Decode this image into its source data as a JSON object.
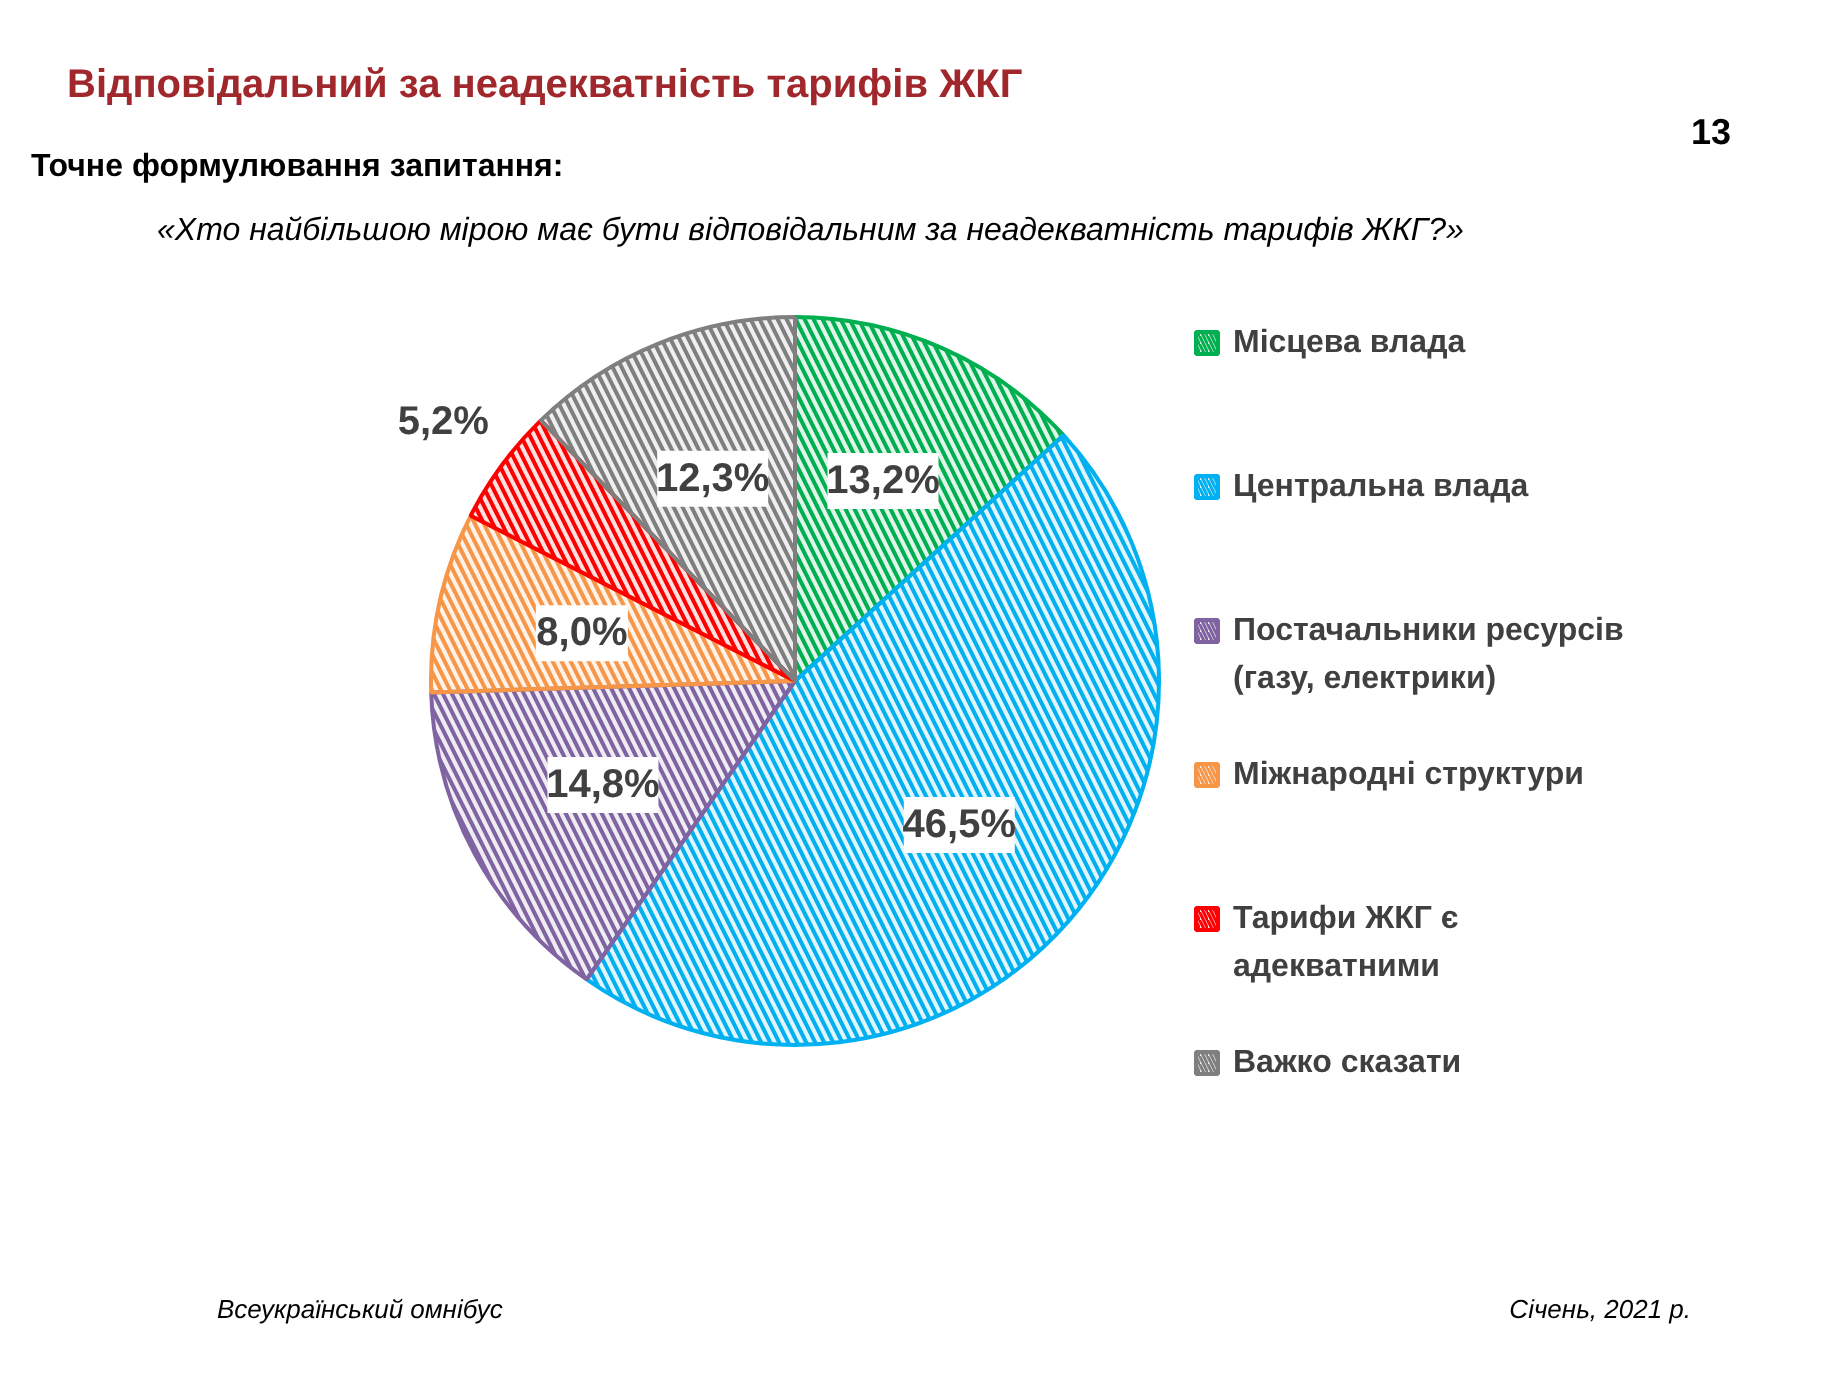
{
  "chart_data": {
    "type": "pie",
    "title": "Відповідальний за неадекватність тарифів ЖКГ",
    "subtitle": "Точне формулювання запитання:",
    "annotations": [
      "«Хто найбільшою мірою має бути відповідальним за неадекватність тарифів ЖКГ?»",
      "13",
      "Всеукраїнський омнібус",
      "Січень, 2021 р."
    ],
    "categories": [
      "Місцева влада",
      "Центральна влада",
      "Постачальники ресурсів (газу, електрики)",
      "Міжнародні структури",
      "Тарифи ЖКГ є адекватними",
      "Важко сказати"
    ],
    "values": [
      13.2,
      46.5,
      14.8,
      8.0,
      5.2,
      12.3
    ],
    "value_labels": [
      "13,2%",
      "46,5%",
      "14,8%",
      "8,0%",
      "5,2%",
      "12,3%"
    ],
    "colors": [
      "#00b050",
      "#00b0f0",
      "#8064a2",
      "#f79646",
      "#ff0000",
      "#7f7f7f"
    ],
    "legend": "right"
  }
}
